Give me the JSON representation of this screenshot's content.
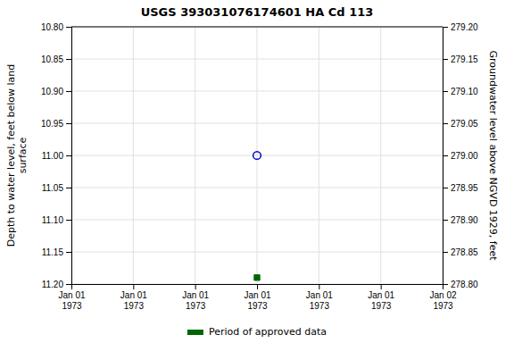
{
  "chart_data": {
    "type": "scatter",
    "title": "USGS 393031076174601 HA Cd 113",
    "y_label": "Depth to water level, feet below land\nsurface",
    "y2_label": "Groundwater level above NGVD 1929, feet",
    "categories": [
      "Jan 01\n1973",
      "Jan 01\n1973",
      "Jan 01\n1973",
      "Jan 01\n1973",
      "Jan 01\n1973",
      "Jan 01\n1973",
      "Jan 02\n1973"
    ],
    "series": [
      {
        "color": "#0000cc",
        "marker": "open-circle",
        "values": [
          null,
          null,
          null,
          11.0,
          null,
          null,
          null
        ]
      },
      {
        "name": "Period of approved data",
        "color": "#006600",
        "marker": "square",
        "values": [
          null,
          null,
          null,
          11.19,
          null,
          null,
          null
        ]
      }
    ],
    "ylim": [
      11.2,
      10.8
    ],
    "yticks": [
      {
        "value": 10.8,
        "label": "10.80"
      },
      {
        "value": 10.85,
        "label": "10.85"
      },
      {
        "value": 10.9,
        "label": "10.90"
      },
      {
        "value": 10.95,
        "label": "10.95"
      },
      {
        "value": 11.0,
        "label": "11.00"
      },
      {
        "value": 11.05,
        "label": "11.05"
      },
      {
        "value": 11.1,
        "label": "11.10"
      },
      {
        "value": 11.15,
        "label": "11.15"
      },
      {
        "value": 11.2,
        "label": "11.20"
      }
    ],
    "y2lim": [
      278.8,
      279.2
    ],
    "y2ticks": [
      {
        "value": 279.2,
        "label": "279.20"
      },
      {
        "value": 279.15,
        "label": "279.15"
      },
      {
        "value": 279.1,
        "label": "279.10"
      },
      {
        "value": 279.05,
        "label": "279.05"
      },
      {
        "value": 279.0,
        "label": "279.00"
      },
      {
        "value": 278.95,
        "label": "278.95"
      },
      {
        "value": 278.9,
        "label": "278.90"
      },
      {
        "value": 278.85,
        "label": "278.85"
      },
      {
        "value": 278.8,
        "label": "278.80"
      }
    ],
    "grid": true,
    "legend": "bottom"
  }
}
